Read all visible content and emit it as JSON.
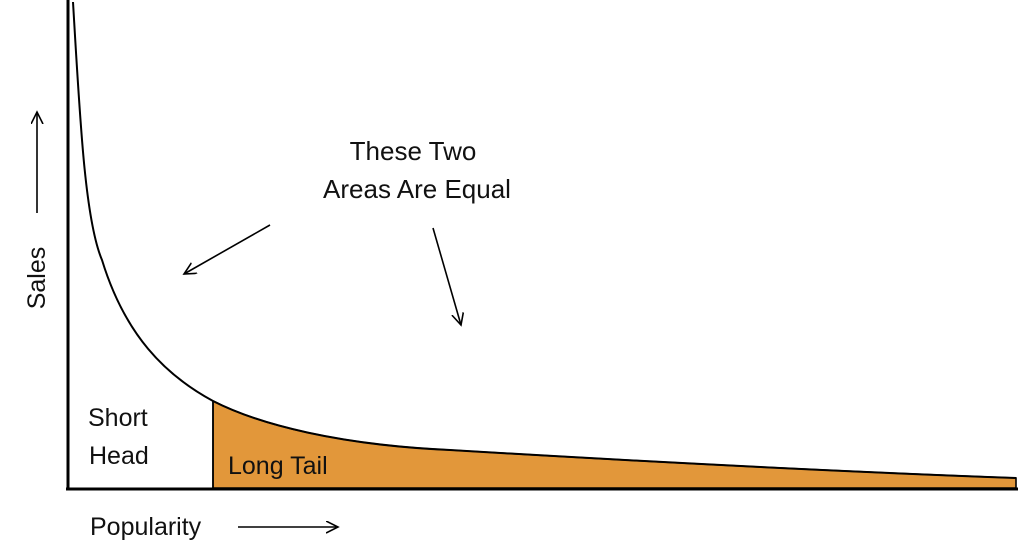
{
  "diagram": {
    "type": "area",
    "title": "These Two Areas Are Equal",
    "title_lines": [
      "These Two",
      "Areas Are Equal"
    ],
    "xlabel": "Popularity",
    "ylabel": "Sales",
    "regions": {
      "head": {
        "name": "Short Head",
        "lines": [
          "Short",
          "Head"
        ],
        "fill": "#ffffff"
      },
      "tail": {
        "name": "Long Tail",
        "fill": "#E2973A"
      }
    }
  },
  "colors": {
    "tail_fill": "#E2973A",
    "line": "#000000",
    "background": "#ffffff"
  }
}
